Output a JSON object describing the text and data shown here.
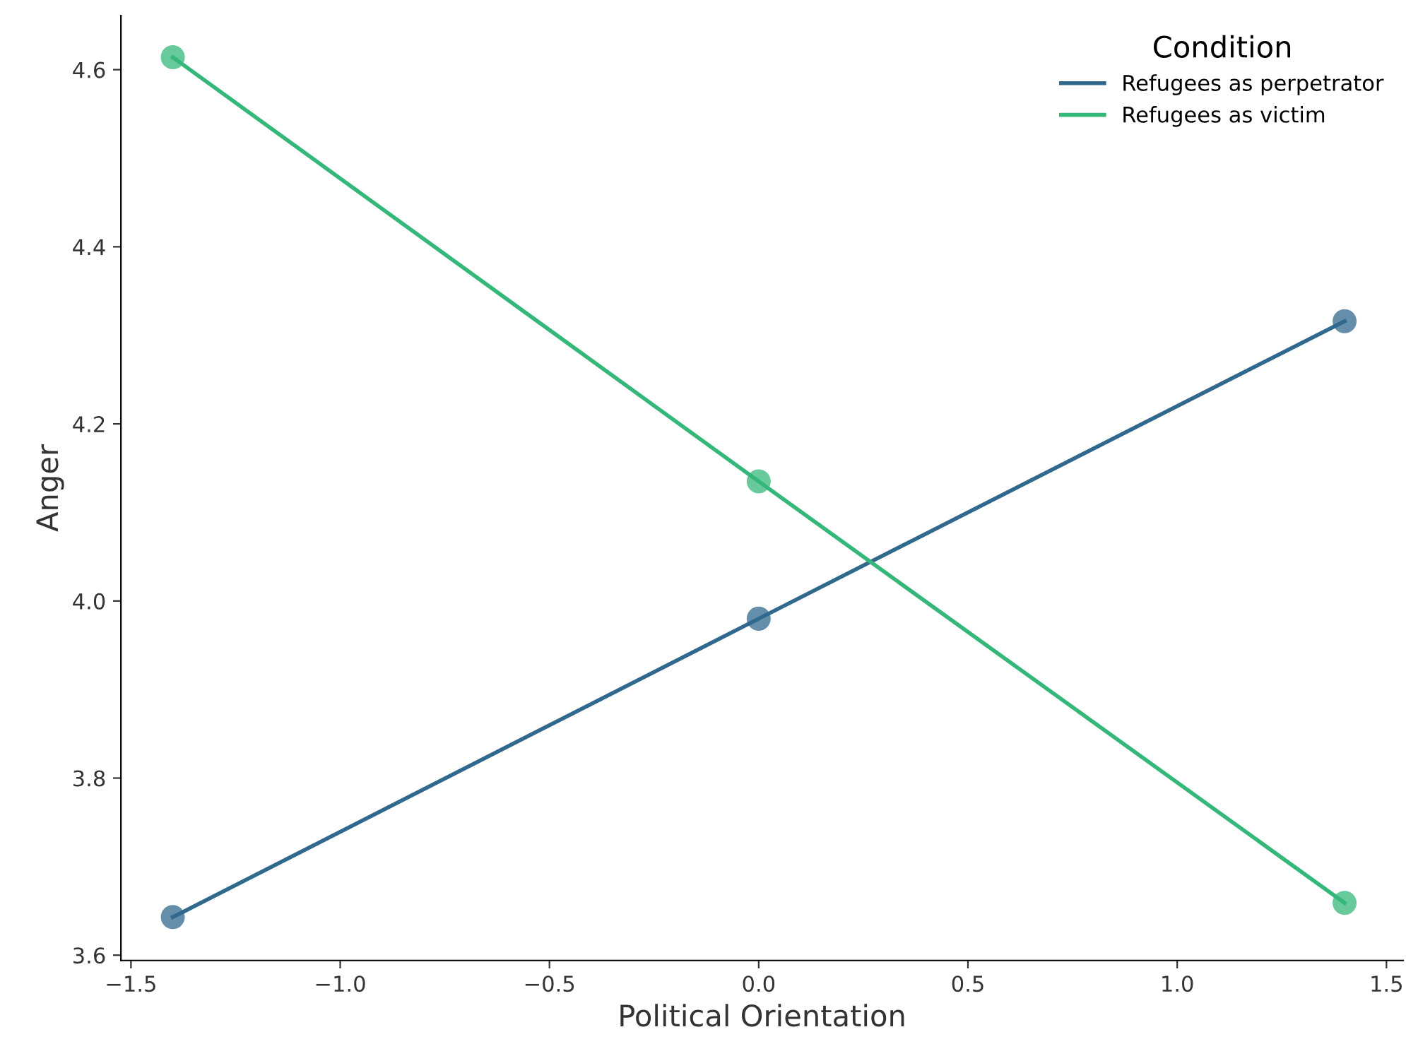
{
  "chart_data": {
    "type": "line",
    "xlabel": "Political Orientation",
    "ylabel": "Anger",
    "legend_title": "Condition",
    "x": [
      -1.4,
      0,
      1.4
    ],
    "series": [
      {
        "name": "Refugees as perpetrator",
        "color": "#31688e",
        "values": [
          3.643,
          3.98,
          4.316
        ]
      },
      {
        "name": "Refugees as victim",
        "color": "#35b779",
        "values": [
          4.614,
          4.135,
          3.659
        ]
      }
    ],
    "xlim": [
      -1.524,
      1.54
    ],
    "ylim": [
      3.594,
      4.661
    ],
    "xticks": [
      {
        "value": -1.5,
        "label": "−1.5"
      },
      {
        "value": -1.0,
        "label": "−1.0"
      },
      {
        "value": -0.5,
        "label": "−0.5"
      },
      {
        "value": 0,
        "label": "0.0"
      },
      0.5,
      {
        "value": 1,
        "label": "1.0"
      },
      1.5
    ],
    "yticks": [
      3.6,
      3.8,
      {
        "value": 4,
        "label": "4.0"
      },
      4.2,
      4.4,
      4.6
    ],
    "legend": "top right",
    "marker": "circle",
    "line_style": "solid"
  }
}
